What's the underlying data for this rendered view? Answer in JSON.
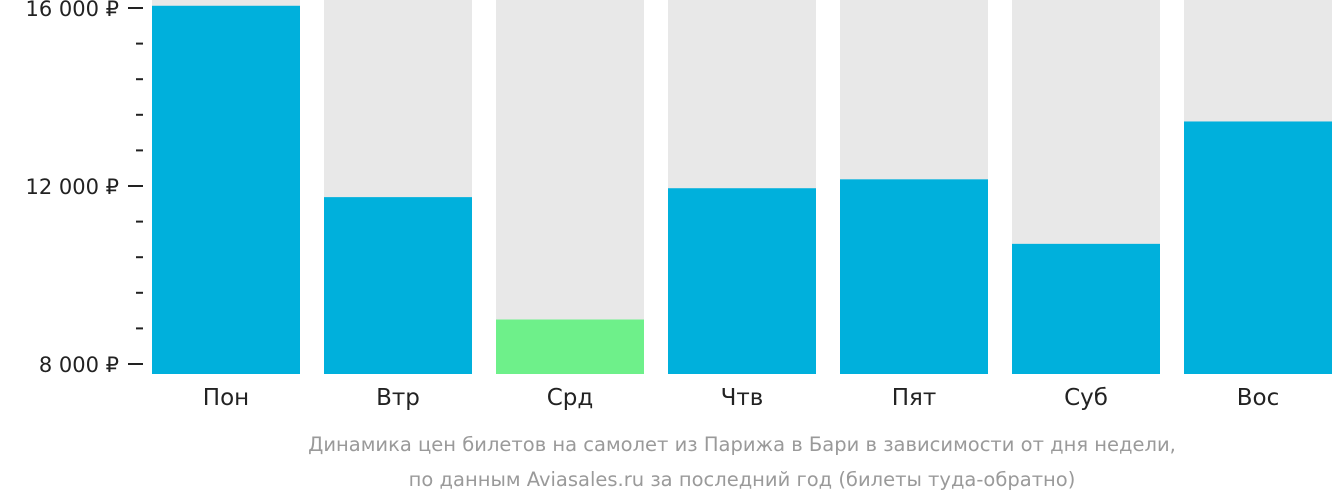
{
  "chart_data": {
    "type": "bar",
    "categories": [
      "Пон",
      "Втр",
      "Срд",
      "Чтв",
      "Пят",
      "Суб",
      "Вос"
    ],
    "values": [
      16050,
      11750,
      9000,
      11950,
      12150,
      10700,
      13450
    ],
    "highlight_index": 2,
    "ylim": [
      8000,
      16000
    ],
    "yticks": [
      {
        "value": 16000,
        "label": "16 000 ₽"
      },
      {
        "value": 12000,
        "label": "12 000 ₽"
      },
      {
        "value": 8000,
        "label": "8 000 ₽"
      }
    ],
    "minor_tick_step": 800,
    "colors": {
      "bar": "#00b0dc",
      "highlight": "#6ef08a",
      "background_bar": "#e8e8e8",
      "text": "#222222",
      "caption": "#9a9a9a"
    },
    "caption_line1": "Динамика цен билетов на самолет из Парижа в Бари в зависимости от дня недели,",
    "caption_line2": "по данным Aviasales.ru за последний год (билеты туда-обратно)"
  }
}
